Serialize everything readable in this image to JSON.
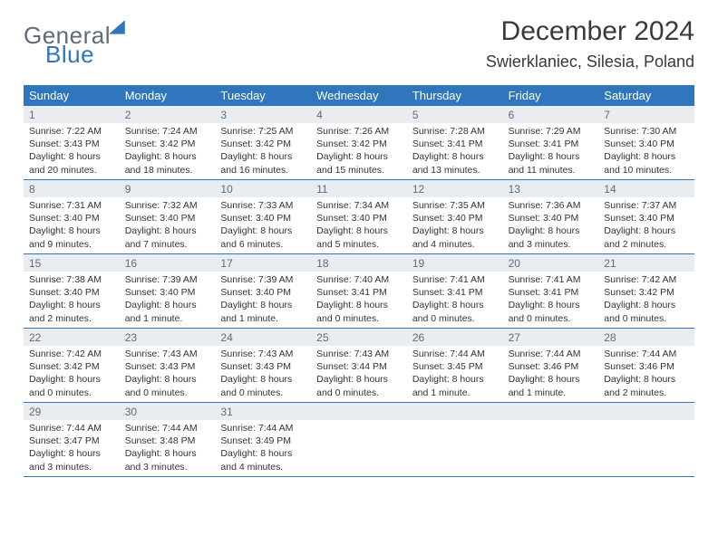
{
  "logo": {
    "text1": "General",
    "text2": "Blue",
    "color1": "#5f6b76",
    "color2": "#2f76bc",
    "triangle_color": "#2f76bc"
  },
  "title": "December 2024",
  "location": "Swierklaniec, Silesia, Poland",
  "header_bg": "#2f76bc",
  "daynum_bg": "#e9edf0",
  "border_color": "#2f76bc",
  "days_of_week": [
    "Sunday",
    "Monday",
    "Tuesday",
    "Wednesday",
    "Thursday",
    "Friday",
    "Saturday"
  ],
  "weeks": [
    [
      {
        "n": "1",
        "sunrise": "Sunrise: 7:22 AM",
        "sunset": "Sunset: 3:43 PM",
        "day1": "Daylight: 8 hours",
        "day2": "and 20 minutes."
      },
      {
        "n": "2",
        "sunrise": "Sunrise: 7:24 AM",
        "sunset": "Sunset: 3:42 PM",
        "day1": "Daylight: 8 hours",
        "day2": "and 18 minutes."
      },
      {
        "n": "3",
        "sunrise": "Sunrise: 7:25 AM",
        "sunset": "Sunset: 3:42 PM",
        "day1": "Daylight: 8 hours",
        "day2": "and 16 minutes."
      },
      {
        "n": "4",
        "sunrise": "Sunrise: 7:26 AM",
        "sunset": "Sunset: 3:42 PM",
        "day1": "Daylight: 8 hours",
        "day2": "and 15 minutes."
      },
      {
        "n": "5",
        "sunrise": "Sunrise: 7:28 AM",
        "sunset": "Sunset: 3:41 PM",
        "day1": "Daylight: 8 hours",
        "day2": "and 13 minutes."
      },
      {
        "n": "6",
        "sunrise": "Sunrise: 7:29 AM",
        "sunset": "Sunset: 3:41 PM",
        "day1": "Daylight: 8 hours",
        "day2": "and 11 minutes."
      },
      {
        "n": "7",
        "sunrise": "Sunrise: 7:30 AM",
        "sunset": "Sunset: 3:40 PM",
        "day1": "Daylight: 8 hours",
        "day2": "and 10 minutes."
      }
    ],
    [
      {
        "n": "8",
        "sunrise": "Sunrise: 7:31 AM",
        "sunset": "Sunset: 3:40 PM",
        "day1": "Daylight: 8 hours",
        "day2": "and 9 minutes."
      },
      {
        "n": "9",
        "sunrise": "Sunrise: 7:32 AM",
        "sunset": "Sunset: 3:40 PM",
        "day1": "Daylight: 8 hours",
        "day2": "and 7 minutes."
      },
      {
        "n": "10",
        "sunrise": "Sunrise: 7:33 AM",
        "sunset": "Sunset: 3:40 PM",
        "day1": "Daylight: 8 hours",
        "day2": "and 6 minutes."
      },
      {
        "n": "11",
        "sunrise": "Sunrise: 7:34 AM",
        "sunset": "Sunset: 3:40 PM",
        "day1": "Daylight: 8 hours",
        "day2": "and 5 minutes."
      },
      {
        "n": "12",
        "sunrise": "Sunrise: 7:35 AM",
        "sunset": "Sunset: 3:40 PM",
        "day1": "Daylight: 8 hours",
        "day2": "and 4 minutes."
      },
      {
        "n": "13",
        "sunrise": "Sunrise: 7:36 AM",
        "sunset": "Sunset: 3:40 PM",
        "day1": "Daylight: 8 hours",
        "day2": "and 3 minutes."
      },
      {
        "n": "14",
        "sunrise": "Sunrise: 7:37 AM",
        "sunset": "Sunset: 3:40 PM",
        "day1": "Daylight: 8 hours",
        "day2": "and 2 minutes."
      }
    ],
    [
      {
        "n": "15",
        "sunrise": "Sunrise: 7:38 AM",
        "sunset": "Sunset: 3:40 PM",
        "day1": "Daylight: 8 hours",
        "day2": "and 2 minutes."
      },
      {
        "n": "16",
        "sunrise": "Sunrise: 7:39 AM",
        "sunset": "Sunset: 3:40 PM",
        "day1": "Daylight: 8 hours",
        "day2": "and 1 minute."
      },
      {
        "n": "17",
        "sunrise": "Sunrise: 7:39 AM",
        "sunset": "Sunset: 3:40 PM",
        "day1": "Daylight: 8 hours",
        "day2": "and 1 minute."
      },
      {
        "n": "18",
        "sunrise": "Sunrise: 7:40 AM",
        "sunset": "Sunset: 3:41 PM",
        "day1": "Daylight: 8 hours",
        "day2": "and 0 minutes."
      },
      {
        "n": "19",
        "sunrise": "Sunrise: 7:41 AM",
        "sunset": "Sunset: 3:41 PM",
        "day1": "Daylight: 8 hours",
        "day2": "and 0 minutes."
      },
      {
        "n": "20",
        "sunrise": "Sunrise: 7:41 AM",
        "sunset": "Sunset: 3:41 PM",
        "day1": "Daylight: 8 hours",
        "day2": "and 0 minutes."
      },
      {
        "n": "21",
        "sunrise": "Sunrise: 7:42 AM",
        "sunset": "Sunset: 3:42 PM",
        "day1": "Daylight: 8 hours",
        "day2": "and 0 minutes."
      }
    ],
    [
      {
        "n": "22",
        "sunrise": "Sunrise: 7:42 AM",
        "sunset": "Sunset: 3:42 PM",
        "day1": "Daylight: 8 hours",
        "day2": "and 0 minutes."
      },
      {
        "n": "23",
        "sunrise": "Sunrise: 7:43 AM",
        "sunset": "Sunset: 3:43 PM",
        "day1": "Daylight: 8 hours",
        "day2": "and 0 minutes."
      },
      {
        "n": "24",
        "sunrise": "Sunrise: 7:43 AM",
        "sunset": "Sunset: 3:43 PM",
        "day1": "Daylight: 8 hours",
        "day2": "and 0 minutes."
      },
      {
        "n": "25",
        "sunrise": "Sunrise: 7:43 AM",
        "sunset": "Sunset: 3:44 PM",
        "day1": "Daylight: 8 hours",
        "day2": "and 0 minutes."
      },
      {
        "n": "26",
        "sunrise": "Sunrise: 7:44 AM",
        "sunset": "Sunset: 3:45 PM",
        "day1": "Daylight: 8 hours",
        "day2": "and 1 minute."
      },
      {
        "n": "27",
        "sunrise": "Sunrise: 7:44 AM",
        "sunset": "Sunset: 3:46 PM",
        "day1": "Daylight: 8 hours",
        "day2": "and 1 minute."
      },
      {
        "n": "28",
        "sunrise": "Sunrise: 7:44 AM",
        "sunset": "Sunset: 3:46 PM",
        "day1": "Daylight: 8 hours",
        "day2": "and 2 minutes."
      }
    ],
    [
      {
        "n": "29",
        "sunrise": "Sunrise: 7:44 AM",
        "sunset": "Sunset: 3:47 PM",
        "day1": "Daylight: 8 hours",
        "day2": "and 3 minutes."
      },
      {
        "n": "30",
        "sunrise": "Sunrise: 7:44 AM",
        "sunset": "Sunset: 3:48 PM",
        "day1": "Daylight: 8 hours",
        "day2": "and 3 minutes."
      },
      {
        "n": "31",
        "sunrise": "Sunrise: 7:44 AM",
        "sunset": "Sunset: 3:49 PM",
        "day1": "Daylight: 8 hours",
        "day2": "and 4 minutes."
      },
      null,
      null,
      null,
      null
    ]
  ]
}
